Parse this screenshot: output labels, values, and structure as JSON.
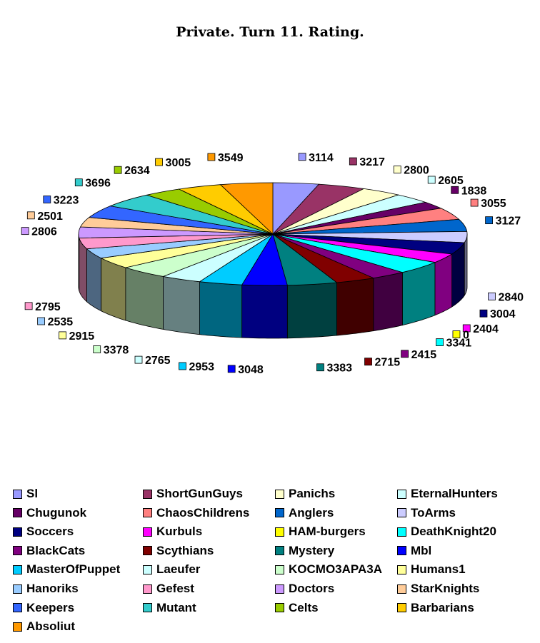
{
  "chart_data": {
    "type": "pie",
    "title": "Private. Turn 11. Rating.",
    "three_d": true,
    "legend_position": "bottom",
    "slices": [
      {
        "name": "Sl",
        "value": 3114,
        "color": "#9999ff"
      },
      {
        "name": "ShortGunGuys",
        "value": 3217,
        "color": "#993366"
      },
      {
        "name": "Panichs",
        "value": 2800,
        "color": "#ffffcc"
      },
      {
        "name": "EternalHunters",
        "value": 2605,
        "color": "#ccffff"
      },
      {
        "name": "Chugunok",
        "value": 1838,
        "color": "#660066"
      },
      {
        "name": "ChaosChildrens",
        "value": 3055,
        "color": "#ff8080"
      },
      {
        "name": "Anglers",
        "value": 3127,
        "color": "#0066cc"
      },
      {
        "name": "ToArms",
        "value": 2840,
        "color": "#ccccff"
      },
      {
        "name": "Soccers",
        "value": 3004,
        "color": "#000080"
      },
      {
        "name": "Kurbuls",
        "value": 2404,
        "color": "#ff00ff"
      },
      {
        "name": "HAM-burgers",
        "value": 0,
        "color": "#ffff00"
      },
      {
        "name": "DeathKnight20",
        "value": 3341,
        "color": "#00ffff"
      },
      {
        "name": "BlackCats",
        "value": 2415,
        "color": "#800080"
      },
      {
        "name": "Scythians",
        "value": 2715,
        "color": "#800000"
      },
      {
        "name": "Mystery",
        "value": 3383,
        "color": "#008080"
      },
      {
        "name": "Mbl",
        "value": 3048,
        "color": "#0000ff"
      },
      {
        "name": "MasterOfPuppet",
        "value": 2953,
        "color": "#00ccff"
      },
      {
        "name": "Laeufer",
        "value": 2765,
        "color": "#ccffff"
      },
      {
        "name": "KOCMO3APA3A",
        "value": 3378,
        "color": "#ccffcc"
      },
      {
        "name": "Humans1",
        "value": 2915,
        "color": "#ffff99"
      },
      {
        "name": "Hanoriks",
        "value": 2535,
        "color": "#99ccff"
      },
      {
        "name": "Gefest",
        "value": 2795,
        "color": "#ff99cc"
      },
      {
        "name": "Doctors",
        "value": 2806,
        "color": "#cc99ff"
      },
      {
        "name": "StarKnights",
        "value": 2501,
        "color": "#ffcc99"
      },
      {
        "name": "Keepers",
        "value": 3223,
        "color": "#3366ff"
      },
      {
        "name": "Mutant",
        "value": 3696,
        "color": "#33cccc"
      },
      {
        "name": "Celts",
        "value": 2634,
        "color": "#99cc00"
      },
      {
        "name": "Barbarians",
        "value": 3005,
        "color": "#ffcc00"
      },
      {
        "name": "Absoliut",
        "value": 3549,
        "color": "#ff9900"
      }
    ]
  }
}
